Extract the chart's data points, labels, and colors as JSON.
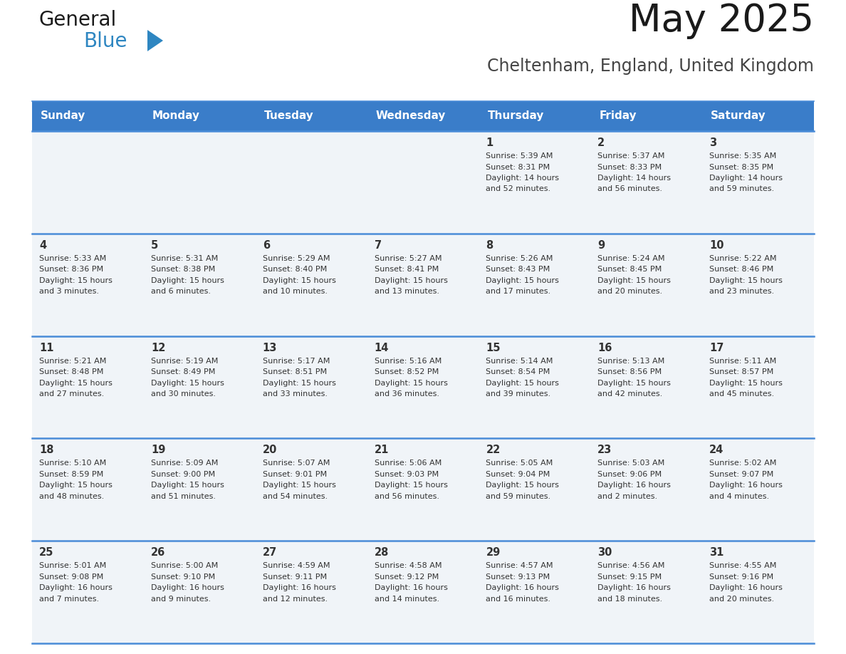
{
  "title": "May 2025",
  "subtitle": "Cheltenham, England, United Kingdom",
  "days_of_week": [
    "Sunday",
    "Monday",
    "Tuesday",
    "Wednesday",
    "Thursday",
    "Friday",
    "Saturday"
  ],
  "header_bg": "#3A7DC9",
  "header_text": "#FFFFFF",
  "cell_bg": "#F0F4F8",
  "border_color": "#3A7DC9",
  "row_border_color": "#4A8CD8",
  "text_color": "#333333",
  "title_color": "#1a1a1a",
  "subtitle_color": "#444444",
  "logo_general_color": "#1a1a1a",
  "logo_blue_color": "#2E86C1",
  "logo_tri_color": "#2E86C1",
  "weeks": [
    [
      {
        "day": null,
        "sunrise": null,
        "sunset": null,
        "daylight": null
      },
      {
        "day": null,
        "sunrise": null,
        "sunset": null,
        "daylight": null
      },
      {
        "day": null,
        "sunrise": null,
        "sunset": null,
        "daylight": null
      },
      {
        "day": null,
        "sunrise": null,
        "sunset": null,
        "daylight": null
      },
      {
        "day": 1,
        "sunrise": "5:39 AM",
        "sunset": "8:31 PM",
        "daylight": "14 hours and 52 minutes."
      },
      {
        "day": 2,
        "sunrise": "5:37 AM",
        "sunset": "8:33 PM",
        "daylight": "14 hours and 56 minutes."
      },
      {
        "day": 3,
        "sunrise": "5:35 AM",
        "sunset": "8:35 PM",
        "daylight": "14 hours and 59 minutes."
      }
    ],
    [
      {
        "day": 4,
        "sunrise": "5:33 AM",
        "sunset": "8:36 PM",
        "daylight": "15 hours and 3 minutes."
      },
      {
        "day": 5,
        "sunrise": "5:31 AM",
        "sunset": "8:38 PM",
        "daylight": "15 hours and 6 minutes."
      },
      {
        "day": 6,
        "sunrise": "5:29 AM",
        "sunset": "8:40 PM",
        "daylight": "15 hours and 10 minutes."
      },
      {
        "day": 7,
        "sunrise": "5:27 AM",
        "sunset": "8:41 PM",
        "daylight": "15 hours and 13 minutes."
      },
      {
        "day": 8,
        "sunrise": "5:26 AM",
        "sunset": "8:43 PM",
        "daylight": "15 hours and 17 minutes."
      },
      {
        "day": 9,
        "sunrise": "5:24 AM",
        "sunset": "8:45 PM",
        "daylight": "15 hours and 20 minutes."
      },
      {
        "day": 10,
        "sunrise": "5:22 AM",
        "sunset": "8:46 PM",
        "daylight": "15 hours and 23 minutes."
      }
    ],
    [
      {
        "day": 11,
        "sunrise": "5:21 AM",
        "sunset": "8:48 PM",
        "daylight": "15 hours and 27 minutes."
      },
      {
        "day": 12,
        "sunrise": "5:19 AM",
        "sunset": "8:49 PM",
        "daylight": "15 hours and 30 minutes."
      },
      {
        "day": 13,
        "sunrise": "5:17 AM",
        "sunset": "8:51 PM",
        "daylight": "15 hours and 33 minutes."
      },
      {
        "day": 14,
        "sunrise": "5:16 AM",
        "sunset": "8:52 PM",
        "daylight": "15 hours and 36 minutes."
      },
      {
        "day": 15,
        "sunrise": "5:14 AM",
        "sunset": "8:54 PM",
        "daylight": "15 hours and 39 minutes."
      },
      {
        "day": 16,
        "sunrise": "5:13 AM",
        "sunset": "8:56 PM",
        "daylight": "15 hours and 42 minutes."
      },
      {
        "day": 17,
        "sunrise": "5:11 AM",
        "sunset": "8:57 PM",
        "daylight": "15 hours and 45 minutes."
      }
    ],
    [
      {
        "day": 18,
        "sunrise": "5:10 AM",
        "sunset": "8:59 PM",
        "daylight": "15 hours and 48 minutes."
      },
      {
        "day": 19,
        "sunrise": "5:09 AM",
        "sunset": "9:00 PM",
        "daylight": "15 hours and 51 minutes."
      },
      {
        "day": 20,
        "sunrise": "5:07 AM",
        "sunset": "9:01 PM",
        "daylight": "15 hours and 54 minutes."
      },
      {
        "day": 21,
        "sunrise": "5:06 AM",
        "sunset": "9:03 PM",
        "daylight": "15 hours and 56 minutes."
      },
      {
        "day": 22,
        "sunrise": "5:05 AM",
        "sunset": "9:04 PM",
        "daylight": "15 hours and 59 minutes."
      },
      {
        "day": 23,
        "sunrise": "5:03 AM",
        "sunset": "9:06 PM",
        "daylight": "16 hours and 2 minutes."
      },
      {
        "day": 24,
        "sunrise": "5:02 AM",
        "sunset": "9:07 PM",
        "daylight": "16 hours and 4 minutes."
      }
    ],
    [
      {
        "day": 25,
        "sunrise": "5:01 AM",
        "sunset": "9:08 PM",
        "daylight": "16 hours and 7 minutes."
      },
      {
        "day": 26,
        "sunrise": "5:00 AM",
        "sunset": "9:10 PM",
        "daylight": "16 hours and 9 minutes."
      },
      {
        "day": 27,
        "sunrise": "4:59 AM",
        "sunset": "9:11 PM",
        "daylight": "16 hours and 12 minutes."
      },
      {
        "day": 28,
        "sunrise": "4:58 AM",
        "sunset": "9:12 PM",
        "daylight": "16 hours and 14 minutes."
      },
      {
        "day": 29,
        "sunrise": "4:57 AM",
        "sunset": "9:13 PM",
        "daylight": "16 hours and 16 minutes."
      },
      {
        "day": 30,
        "sunrise": "4:56 AM",
        "sunset": "9:15 PM",
        "daylight": "16 hours and 18 minutes."
      },
      {
        "day": 31,
        "sunrise": "4:55 AM",
        "sunset": "9:16 PM",
        "daylight": "16 hours and 20 minutes."
      }
    ]
  ]
}
